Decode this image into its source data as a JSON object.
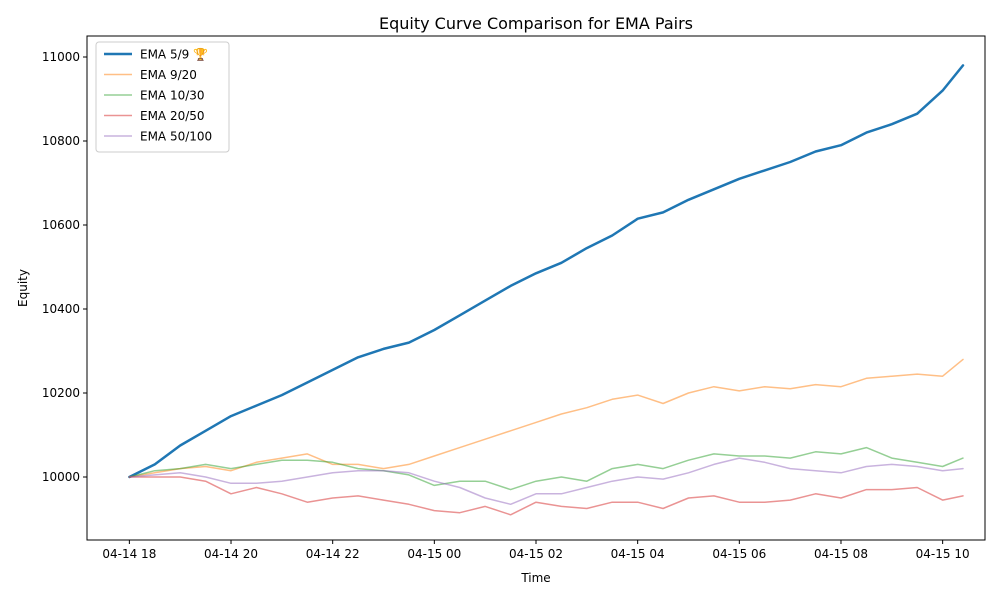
{
  "chart_data": {
    "type": "line",
    "title": "Equity Curve Comparison for EMA Pairs",
    "xlabel": "Time",
    "ylabel": "Equity",
    "x_range": [
      -0.8333,
      16.8333
    ],
    "ylim": [
      9850,
      11050
    ],
    "xtick_labels": [
      "04-14 18",
      "04-14 20",
      "04-14 22",
      "04-15 00",
      "04-15 02",
      "04-15 04",
      "04-15 06",
      "04-15 08",
      "04-15 10"
    ],
    "xtick_hours": [
      0,
      2,
      4,
      6,
      8,
      10,
      12,
      14,
      16
    ],
    "yticks": [
      10000,
      10200,
      10400,
      10600,
      10800,
      11000
    ],
    "x_hours": [
      0.0,
      0.5,
      1.0,
      1.5,
      2.0,
      2.5,
      3.0,
      3.5,
      4.0,
      4.5,
      5.0,
      5.5,
      6.0,
      6.5,
      7.0,
      7.5,
      8.0,
      8.5,
      9.0,
      9.5,
      10.0,
      10.5,
      11.0,
      11.5,
      12.0,
      12.5,
      13.0,
      13.5,
      14.0,
      14.5,
      15.0,
      15.5,
      16.0,
      16.4
    ],
    "legend_position": "upper left",
    "grid": false,
    "series": [
      {
        "name": "EMA 5/9 🏆",
        "color": "#1f77b4",
        "linewidth": 2.5,
        "alpha": 1.0,
        "values": [
          10000,
          10030,
          10075,
          10110,
          10145,
          10170,
          10195,
          10225,
          10255,
          10285,
          10305,
          10320,
          10350,
          10385,
          10420,
          10455,
          10485,
          10510,
          10545,
          10575,
          10615,
          10630,
          10660,
          10685,
          10710,
          10730,
          10750,
          10775,
          10790,
          10820,
          10840,
          10865,
          10920,
          10980
        ]
      },
      {
        "name": "EMA 9/20",
        "color": "#ff7f0e",
        "linewidth": 1.5,
        "alpha": 0.5,
        "values": [
          10000,
          10010,
          10020,
          10025,
          10015,
          10035,
          10045,
          10055,
          10030,
          10030,
          10020,
          10030,
          10050,
          10070,
          10090,
          10110,
          10130,
          10150,
          10165,
          10185,
          10195,
          10175,
          10200,
          10215,
          10205,
          10215,
          10210,
          10220,
          10215,
          10235,
          10240,
          10245,
          10240,
          10280
        ]
      },
      {
        "name": "EMA 10/30",
        "color": "#2ca02c",
        "linewidth": 1.5,
        "alpha": 0.5,
        "values": [
          10000,
          10015,
          10020,
          10030,
          10020,
          10030,
          10040,
          10040,
          10035,
          10020,
          10015,
          10005,
          9980,
          9990,
          9990,
          9970,
          9990,
          10000,
          9990,
          10020,
          10030,
          10020,
          10040,
          10055,
          10050,
          10050,
          10045,
          10060,
          10055,
          10070,
          10045,
          10035,
          10025,
          10045
        ]
      },
      {
        "name": "EMA 20/50",
        "color": "#d62728",
        "linewidth": 1.5,
        "alpha": 0.5,
        "values": [
          10000,
          10000,
          10000,
          9990,
          9960,
          9975,
          9960,
          9940,
          9950,
          9955,
          9945,
          9935,
          9920,
          9915,
          9930,
          9910,
          9940,
          9930,
          9925,
          9940,
          9940,
          9925,
          9950,
          9955,
          9940,
          9940,
          9945,
          9960,
          9950,
          9970,
          9970,
          9975,
          9945,
          9955
        ]
      },
      {
        "name": "EMA 50/100",
        "color": "#9467bd",
        "linewidth": 1.5,
        "alpha": 0.5,
        "values": [
          10000,
          10005,
          10010,
          10000,
          9985,
          9985,
          9990,
          10000,
          10010,
          10015,
          10015,
          10010,
          9990,
          9975,
          9950,
          9935,
          9960,
          9960,
          9975,
          9990,
          10000,
          9995,
          10010,
          10030,
          10045,
          10035,
          10020,
          10015,
          10010,
          10025,
          10030,
          10025,
          10015,
          10020
        ]
      }
    ]
  }
}
